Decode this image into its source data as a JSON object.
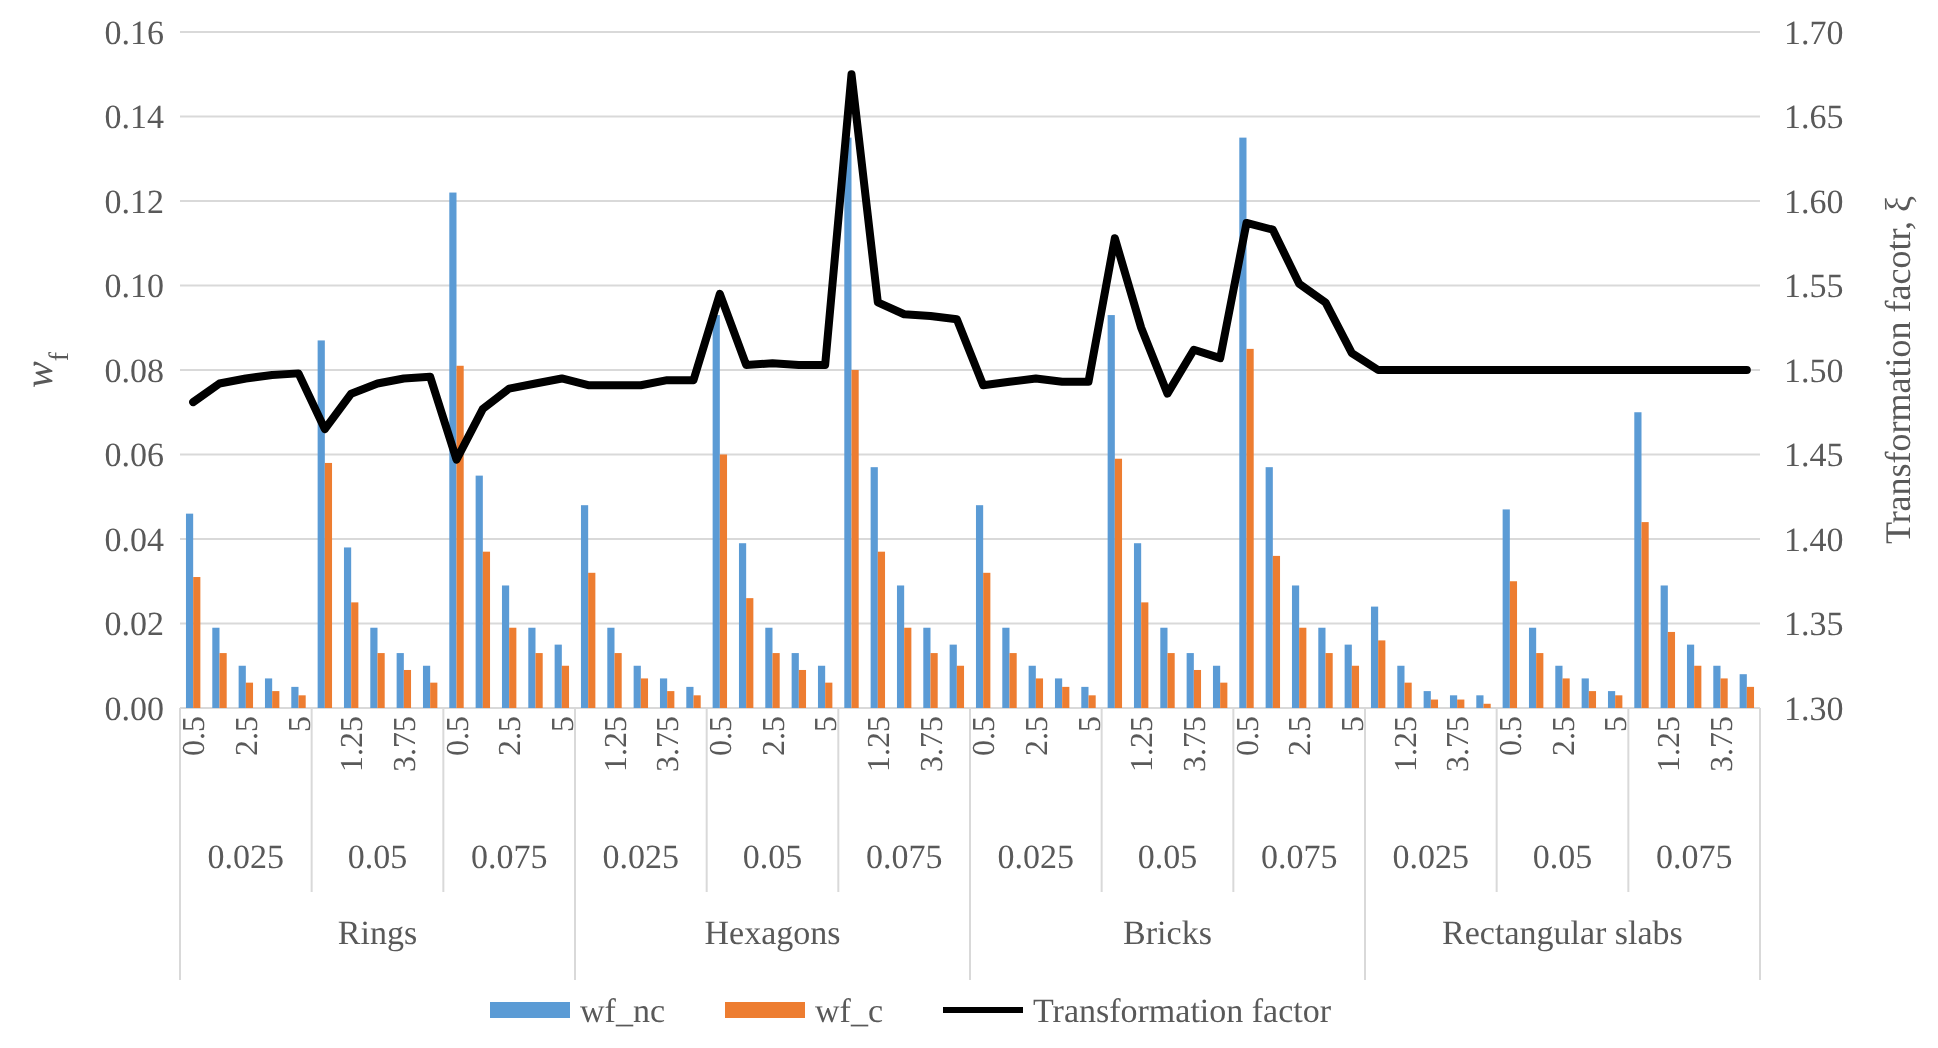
{
  "chart_data": {
    "type": "bar",
    "ylabel": "w$_{f}$",
    "y2label": "Transformation facotr, ξ",
    "categories": [
      "0.5",
      null,
      "2.5",
      null,
      "5",
      null,
      "1.25",
      null,
      "3.75",
      null,
      "0.5",
      null,
      "2.5",
      null,
      "5",
      null,
      "1.25",
      null,
      "3.75",
      null,
      "0.5",
      null,
      "2.5",
      null,
      "5",
      null,
      "1.25",
      null,
      "3.75",
      null,
      "0.5",
      null,
      "2.5",
      null,
      "5",
      null,
      "1.25",
      null,
      "3.75",
      null,
      "0.5",
      null,
      "2.5",
      null,
      "5",
      null,
      "1.25",
      null,
      "3.75",
      null,
      "0.5",
      null,
      "2.5",
      null,
      "5",
      null,
      "1.25",
      null,
      "3.75",
      null
    ],
    "series": [
      {
        "name": "wf_nc",
        "color": "#5b9bd5",
        "values": [
          0.046,
          0.019,
          0.01,
          0.007,
          0.005,
          0.087,
          0.038,
          0.019,
          0.013,
          0.01,
          0.122,
          0.055,
          0.029,
          0.019,
          0.015,
          0.048,
          0.019,
          0.01,
          0.007,
          0.005,
          0.093,
          0.039,
          0.019,
          0.013,
          0.01,
          0.135,
          0.057,
          0.029,
          0.019,
          0.015,
          0.048,
          0.019,
          0.01,
          0.007,
          0.005,
          0.093,
          0.039,
          0.019,
          0.013,
          0.01,
          0.135,
          0.057,
          0.029,
          0.019,
          0.015,
          0.024,
          0.01,
          0.004,
          0.003,
          0.003,
          0.047,
          0.019,
          0.01,
          0.007,
          0.004,
          0.07,
          0.029,
          0.015,
          0.01,
          0.008
        ]
      },
      {
        "name": "wf_c",
        "color": "#ed7d31",
        "values": [
          0.031,
          0.013,
          0.006,
          0.004,
          0.003,
          0.058,
          0.025,
          0.013,
          0.009,
          0.006,
          0.081,
          0.037,
          0.019,
          0.013,
          0.01,
          0.032,
          0.013,
          0.007,
          0.004,
          0.003,
          0.06,
          0.026,
          0.013,
          0.009,
          0.006,
          0.08,
          0.037,
          0.019,
          0.013,
          0.01,
          0.032,
          0.013,
          0.007,
          0.005,
          0.003,
          0.059,
          0.025,
          0.013,
          0.009,
          0.006,
          0.085,
          0.036,
          0.019,
          0.013,
          0.01,
          0.016,
          0.006,
          0.002,
          0.002,
          0.001,
          0.03,
          0.013,
          0.007,
          0.004,
          0.003,
          0.044,
          0.018,
          0.01,
          0.007,
          0.005
        ]
      },
      {
        "name": "Transformation factor",
        "type": "line",
        "axis": "y2",
        "color": "#000000",
        "values": [
          1.481,
          1.492,
          1.495,
          1.497,
          1.498,
          1.465,
          1.486,
          1.492,
          1.495,
          1.496,
          1.447,
          1.477,
          1.489,
          1.492,
          1.495,
          1.491,
          1.491,
          1.491,
          1.494,
          1.494,
          1.545,
          1.503,
          1.504,
          1.503,
          1.503,
          1.675,
          1.54,
          1.533,
          1.532,
          1.53,
          1.491,
          1.493,
          1.495,
          1.493,
          1.493,
          1.578,
          1.525,
          1.486,
          1.512,
          1.507,
          1.587,
          1.583,
          1.551,
          1.54,
          1.51,
          1.5,
          1.5,
          1.5,
          1.5,
          1.5,
          1.5,
          1.5,
          1.5,
          1.5,
          1.5,
          1.5,
          1.5,
          1.5,
          1.5,
          1.5
        ]
      }
    ],
    "ylim": [
      0,
      0.16
    ],
    "yticks": [
      {
        "value": 0,
        "label": "0.00"
      },
      0.02,
      0.04,
      0.06,
      0.08,
      {
        "value": 0.1,
        "label": "0.10"
      },
      0.12,
      0.14,
      0.16
    ],
    "y2lim": [
      1.3,
      1.7
    ],
    "y2ticks": [
      {
        "value": 1.3,
        "label": "1.30"
      },
      1.35,
      {
        "value": 1.4,
        "label": "1.40"
      },
      1.45,
      {
        "value": 1.5,
        "label": "1.50"
      },
      1.55,
      {
        "value": 1.6,
        "label": "1.60"
      },
      1.65,
      {
        "value": 1.7,
        "label": "1.70"
      }
    ],
    "annotations": [
      "0.025",
      "0.05",
      "0.075",
      "0.025",
      "0.05",
      "0.075",
      "0.025",
      "0.05",
      "0.075",
      "0.025",
      "0.05",
      "0.075",
      "Rings",
      "Hexagons",
      "Bricks",
      "Rectangular slabs"
    ],
    "grid": "y",
    "legend": "bottom",
    "line_style": "solid",
    "marker": "none"
  }
}
